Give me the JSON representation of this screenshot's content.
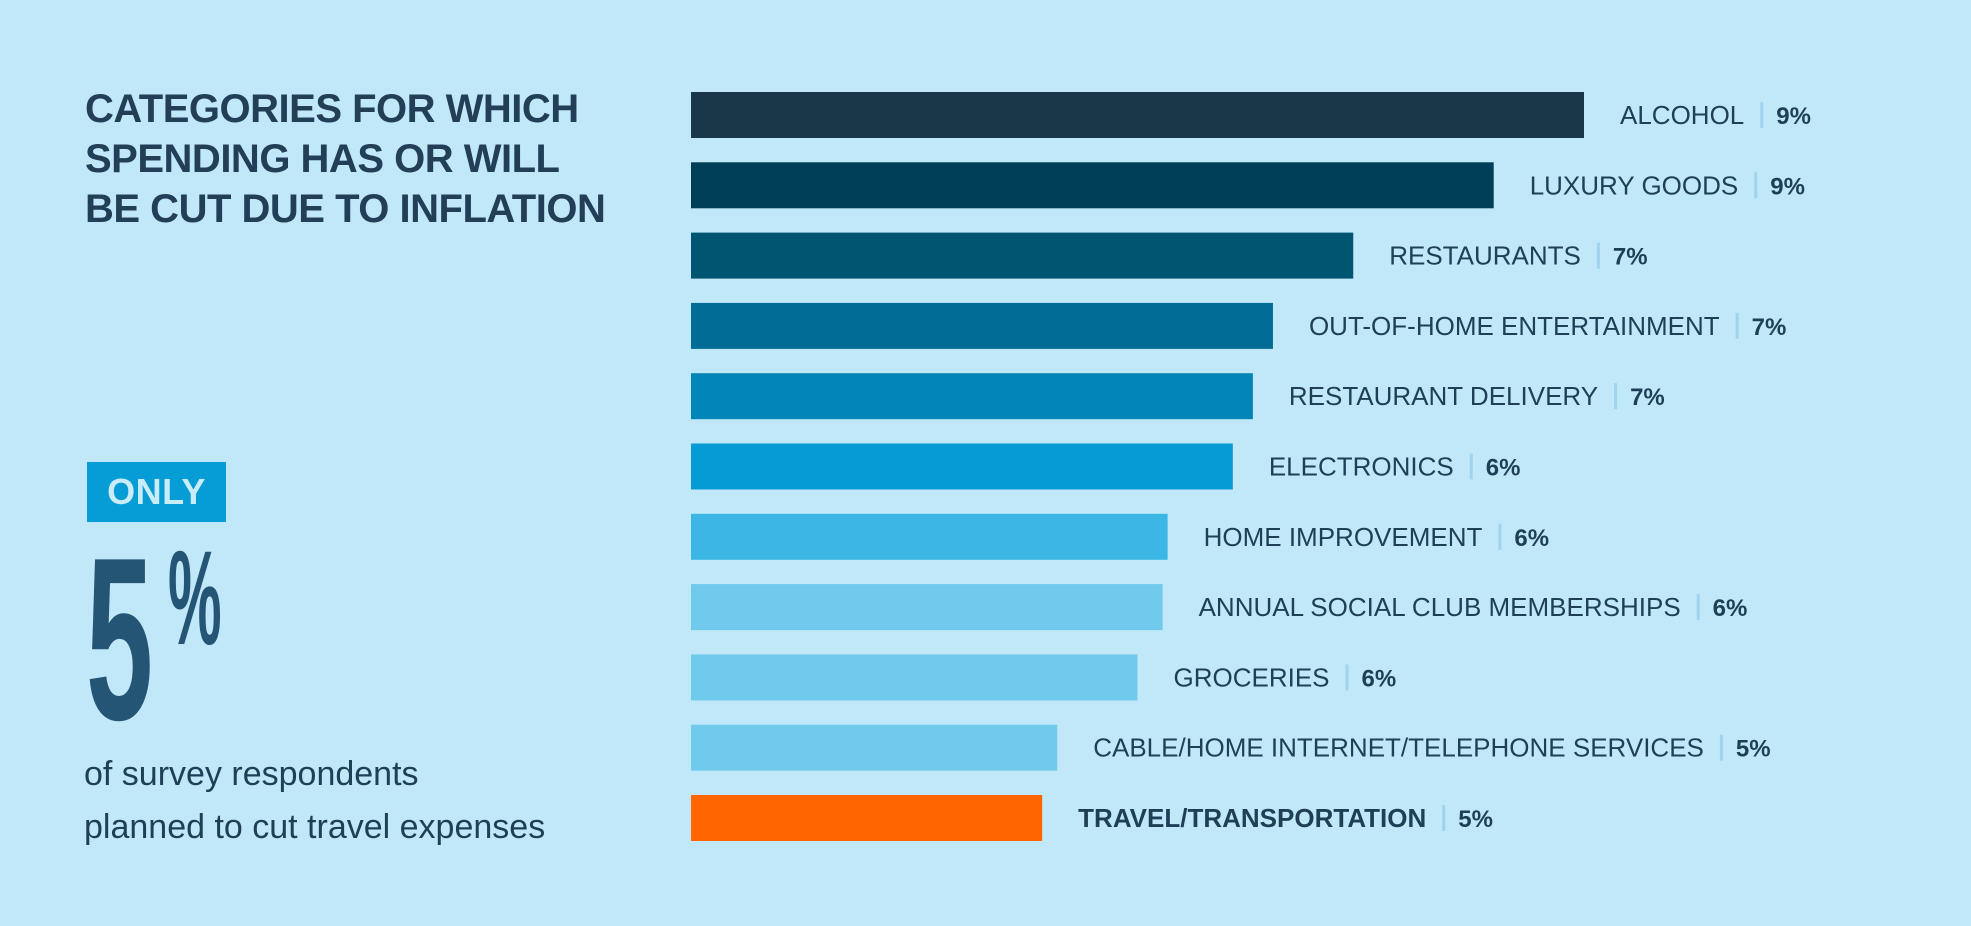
{
  "heading": {
    "lines": [
      "CATEGORIES FOR WHICH",
      "SPENDING HAS OR WILL",
      "BE CUT DUE TO INFLATION"
    ]
  },
  "callout": {
    "badge": "ONLY",
    "number": "5",
    "unit": "%",
    "description_lines": [
      "of survey respondents",
      "planned to cut travel expenses"
    ]
  },
  "colors": {
    "background": "#c0e8f8",
    "text": "#1e3f56",
    "highlight": "#ff6600"
  },
  "chart_data": {
    "type": "bar",
    "orientation": "horizontal",
    "title": "CATEGORIES FOR WHICH SPENDING HAS OR WILL BE CUT DUE TO INFLATION",
    "xlabel": "",
    "ylabel": "",
    "grid": false,
    "unit": "%",
    "categories": [
      "ALCOHOL",
      "LUXURY GOODS",
      "RESTAURANTS",
      "OUT-OF-HOME ENTERTAINMENT",
      "RESTAURANT DELIVERY",
      "ELECTRONICS",
      "HOME IMPROVEMENT",
      "ANNUAL SOCIAL CLUB MEMBERSHIPS",
      "GROCERIES",
      "CABLE/HOME INTERNET/TELEPHONE SERVICES",
      "TRAVEL/TRANSPORTATION"
    ],
    "values": [
      9,
      9,
      7,
      7,
      7,
      6,
      6,
      6,
      6,
      5,
      5
    ],
    "value_labels": [
      "9%",
      "9%",
      "7%",
      "7%",
      "7%",
      "6%",
      "6%",
      "6%",
      "6%",
      "5%",
      "5%"
    ],
    "bar_lengths_relative": [
      8.9,
      8.0,
      6.6,
      5.8,
      5.6,
      5.4,
      4.75,
      4.7,
      4.45,
      3.65,
      3.5
    ],
    "colors": [
      "#193749",
      "#003f58",
      "#015570",
      "#016d96",
      "#0285b7",
      "#069bd4",
      "#3cb7e5",
      "#70caec",
      "#70caec",
      "#70caec",
      "#ff6600"
    ],
    "highlighted": "TRAVEL/TRANSPORTATION"
  }
}
